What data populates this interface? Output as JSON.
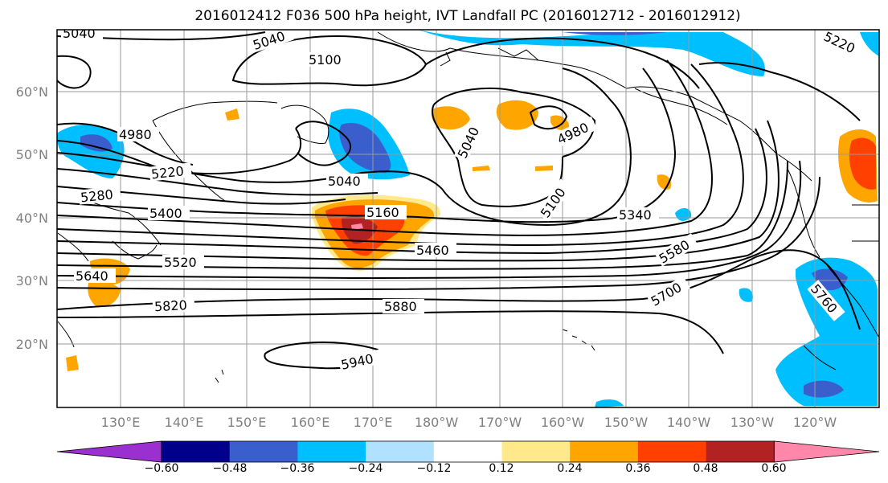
{
  "title": "2016012412 F036 500 hPa height, IVT Landfall PC (2016012712 - 2016012912)",
  "lat_labels": [
    "60°N",
    "50°N",
    "40°N",
    "30°N",
    "20°N"
  ],
  "lon_labels": [
    "130°E",
    "140°E",
    "150°E",
    "160°E",
    "170°E",
    "180°W",
    "170°W",
    "160°W",
    "150°W",
    "140°W",
    "130°W",
    "120°W"
  ],
  "contour_labels": [
    "5040",
    "5040",
    "5100",
    "5220",
    "4980",
    "5220",
    "5280",
    "5040",
    "5040",
    "4980",
    "5160",
    "5400",
    "5100",
    "5340",
    "5460",
    "5520",
    "5580",
    "5640",
    "5700",
    "5760",
    "5820",
    "5880",
    "5940"
  ],
  "colorbar": {
    "ticks": [
      "−0.60",
      "−0.48",
      "−0.36",
      "−0.24",
      "−0.12",
      "0.12",
      "0.24",
      "0.36",
      "0.48",
      "0.60"
    ],
    "colors": [
      "#9b30d0",
      "#00008b",
      "#3a5fcd",
      "#00bfff",
      "#b0e2ff",
      "#ffffff",
      "#ffe98a",
      "#ffa500",
      "#ff4000",
      "#b22222",
      "#ff88aa"
    ]
  },
  "colors": {
    "frame": "#000000",
    "grid": "#9a9a9a",
    "tick_label": "#808080"
  }
}
